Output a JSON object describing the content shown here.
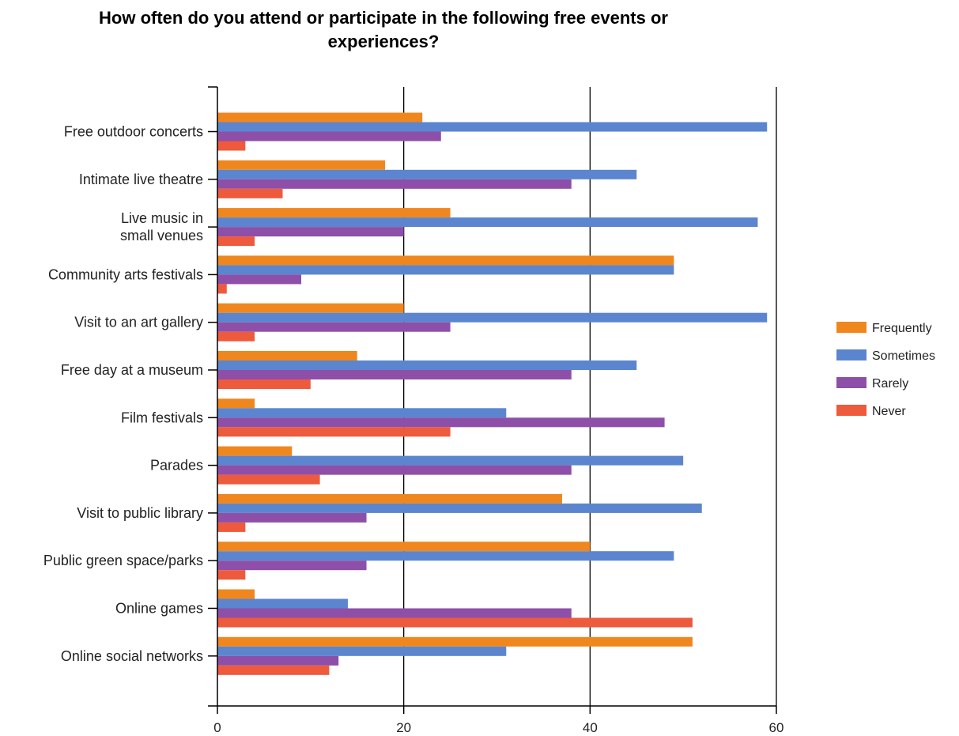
{
  "chart_data": {
    "type": "bar",
    "orientation": "horizontal",
    "title": "How often do you attend or participate in the following free events or\nexperiences?",
    "categories": [
      "Free outdoor concerts",
      "Intimate live theatre",
      "Live music in\nsmall venues",
      "Community arts festivals",
      "Visit to an art gallery",
      "Free day at a museum",
      "Film festivals",
      "Parades",
      "Visit to public library",
      "Public green space/parks",
      "Online games",
      "Online social networks"
    ],
    "series": [
      {
        "name": "Frequently",
        "color": "#f0871e",
        "values": [
          22,
          18,
          25,
          49,
          20,
          15,
          4,
          8,
          37,
          40,
          4,
          51
        ]
      },
      {
        "name": "Sometimes",
        "color": "#5b85cf",
        "values": [
          59,
          45,
          58,
          49,
          59,
          45,
          31,
          50,
          52,
          49,
          14,
          31
        ]
      },
      {
        "name": "Rarely",
        "color": "#8e4fa8",
        "values": [
          24,
          38,
          20,
          9,
          25,
          38,
          48,
          38,
          16,
          16,
          38,
          13
        ]
      },
      {
        "name": "Never",
        "color": "#ee5a3c",
        "values": [
          3,
          7,
          4,
          1,
          4,
          10,
          25,
          11,
          3,
          3,
          51,
          12
        ]
      }
    ],
    "xlim": [
      0,
      60
    ],
    "xticks": [
      0,
      20,
      40,
      60
    ],
    "grid": true,
    "legend": "right",
    "xlabel": "",
    "ylabel": ""
  }
}
